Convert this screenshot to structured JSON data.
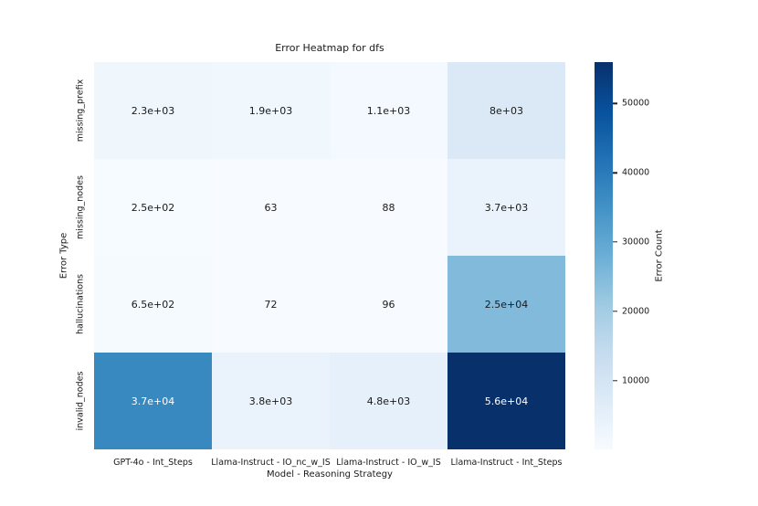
{
  "figure": {
    "background": "#ffffff"
  },
  "chart_data": {
    "type": "heatmap",
    "title": "Error Heatmap for dfs",
    "xlabel": "Model - Reasoning Strategy",
    "ylabel": "Error Type",
    "x_categories": [
      "GPT-4o - Int_Steps",
      "Llama-Instruct - IO_nc_w_IS",
      "Llama-Instruct - IO_w_IS",
      "Llama-Instruct - Int_Steps"
    ],
    "y_categories": [
      "missing_prefix",
      "missing_nodes",
      "hallucinations",
      "invalid_nodes"
    ],
    "values": [
      [
        2300,
        1900,
        1100,
        8000
      ],
      [
        250,
        63,
        88,
        3700
      ],
      [
        650,
        72,
        96,
        25000
      ],
      [
        37000,
        3800,
        4800,
        56000
      ]
    ],
    "cell_labels": [
      [
        "2.3e+03",
        "1.9e+03",
        "1.1e+03",
        "8e+03"
      ],
      [
        "2.5e+02",
        "63",
        "88",
        "3.7e+03"
      ],
      [
        "6.5e+02",
        "72",
        "96",
        "2.5e+04"
      ],
      [
        "3.7e+04",
        "3.8e+03",
        "4.8e+03",
        "5.6e+04"
      ]
    ],
    "colorbar": {
      "label": "Error Count",
      "ticks": [
        10000,
        20000,
        30000,
        40000,
        50000
      ],
      "vmin": 63,
      "vmax": 56000,
      "colormap": "Blues",
      "colormap_stops": [
        "#f7fbff",
        "#deebf7",
        "#c6dbef",
        "#9ecae1",
        "#6baed6",
        "#4292c6",
        "#2171b5",
        "#08519c",
        "#08306b"
      ]
    },
    "layout": {
      "grid_lines": false,
      "legend": "colorbar-right"
    }
  }
}
